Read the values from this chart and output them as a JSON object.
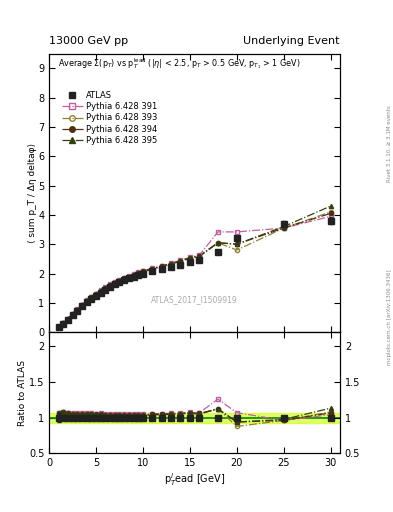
{
  "title_left": "13000 GeV pp",
  "title_right": "Underlying Event",
  "right_label": "mcplots.cern.ch [arXiv:1306.3436]",
  "right_label2": "Rivet 3.1.10, ≥ 3.1M events",
  "annotation": "ATLAS_2017_I1509919",
  "ylabel_main": "⟨ sum p_T / Δη deltaφ⟩",
  "ylabel_ratio": "Ratio to ATLAS",
  "xlabel": "p$_T^l$ead [GeV]",
  "ylim_main": [
    0,
    9.5
  ],
  "ylim_ratio": [
    0.5,
    2.2
  ],
  "xlim": [
    0.5,
    31
  ],
  "yticks_main": [
    0,
    1,
    2,
    3,
    4,
    5,
    6,
    7,
    8,
    9
  ],
  "yticks_ratio": [
    0.5,
    1.0,
    1.5,
    2.0
  ],
  "xticks": [
    0,
    5,
    10,
    15,
    20,
    25,
    30
  ],
  "atlas_x": [
    1.0,
    1.5,
    2.0,
    2.5,
    3.0,
    3.5,
    4.0,
    4.5,
    5.0,
    5.5,
    6.0,
    6.5,
    7.0,
    7.5,
    8.0,
    8.5,
    9.0,
    9.5,
    10.0,
    11.0,
    12.0,
    13.0,
    14.0,
    15.0,
    16.0,
    18.0,
    20.0,
    25.0,
    30.0
  ],
  "atlas_y": [
    0.17,
    0.28,
    0.43,
    0.58,
    0.73,
    0.88,
    1.02,
    1.13,
    1.24,
    1.35,
    1.45,
    1.55,
    1.63,
    1.7,
    1.77,
    1.83,
    1.89,
    1.95,
    2.0,
    2.07,
    2.15,
    2.22,
    2.3,
    2.38,
    2.46,
    2.72,
    3.2,
    3.7,
    3.8
  ],
  "atlas_yerr": [
    0.01,
    0.01,
    0.01,
    0.01,
    0.01,
    0.01,
    0.01,
    0.01,
    0.01,
    0.01,
    0.01,
    0.01,
    0.01,
    0.01,
    0.01,
    0.01,
    0.01,
    0.01,
    0.02,
    0.02,
    0.02,
    0.02,
    0.02,
    0.03,
    0.04,
    0.05,
    0.08,
    0.1,
    0.12
  ],
  "p391_x": [
    1.0,
    1.5,
    2.0,
    2.5,
    3.0,
    3.5,
    4.0,
    4.5,
    5.0,
    5.5,
    6.0,
    6.5,
    7.0,
    7.5,
    8.0,
    8.5,
    9.0,
    9.5,
    10.0,
    11.0,
    12.0,
    13.0,
    14.0,
    15.0,
    16.0,
    18.0,
    20.0,
    25.0,
    30.0
  ],
  "p391_y": [
    0.18,
    0.3,
    0.46,
    0.62,
    0.78,
    0.94,
    1.08,
    1.2,
    1.31,
    1.43,
    1.53,
    1.63,
    1.71,
    1.78,
    1.85,
    1.91,
    1.98,
    2.04,
    2.09,
    2.18,
    2.27,
    2.35,
    2.45,
    2.55,
    2.62,
    3.42,
    3.42,
    3.55,
    3.95
  ],
  "p393_x": [
    1.0,
    1.5,
    2.0,
    2.5,
    3.0,
    3.5,
    4.0,
    4.5,
    5.0,
    5.5,
    6.0,
    6.5,
    7.0,
    7.5,
    8.0,
    8.5,
    9.0,
    9.5,
    10.0,
    11.0,
    12.0,
    13.0,
    14.0,
    15.0,
    16.0,
    18.0,
    20.0,
    25.0,
    30.0
  ],
  "p393_y": [
    0.18,
    0.3,
    0.46,
    0.61,
    0.77,
    0.92,
    1.06,
    1.18,
    1.29,
    1.4,
    1.5,
    1.59,
    1.68,
    1.75,
    1.82,
    1.88,
    1.94,
    2.0,
    2.05,
    2.14,
    2.23,
    2.32,
    2.41,
    2.51,
    2.57,
    3.05,
    2.8,
    3.55,
    4.1
  ],
  "p394_x": [
    1.0,
    1.5,
    2.0,
    2.5,
    3.0,
    3.5,
    4.0,
    4.5,
    5.0,
    5.5,
    6.0,
    6.5,
    7.0,
    7.5,
    8.0,
    8.5,
    9.0,
    9.5,
    10.0,
    11.0,
    12.0,
    13.0,
    14.0,
    15.0,
    16.0,
    18.0,
    20.0,
    25.0,
    30.0
  ],
  "p394_y": [
    0.18,
    0.3,
    0.46,
    0.61,
    0.77,
    0.92,
    1.07,
    1.19,
    1.3,
    1.41,
    1.51,
    1.61,
    1.69,
    1.76,
    1.83,
    1.89,
    1.96,
    2.02,
    2.07,
    2.16,
    2.25,
    2.33,
    2.43,
    2.53,
    2.6,
    3.05,
    3.0,
    3.55,
    4.05
  ],
  "p395_x": [
    1.0,
    1.5,
    2.0,
    2.5,
    3.0,
    3.5,
    4.0,
    4.5,
    5.0,
    5.5,
    6.0,
    6.5,
    7.0,
    7.5,
    8.0,
    8.5,
    9.0,
    9.5,
    10.0,
    11.0,
    12.0,
    13.0,
    14.0,
    15.0,
    16.0,
    18.0,
    20.0,
    25.0,
    30.0
  ],
  "p395_y": [
    0.18,
    0.3,
    0.46,
    0.61,
    0.77,
    0.92,
    1.07,
    1.19,
    1.3,
    1.41,
    1.51,
    1.6,
    1.69,
    1.76,
    1.83,
    1.89,
    1.96,
    2.02,
    2.07,
    2.16,
    2.25,
    2.33,
    2.43,
    2.53,
    2.59,
    3.05,
    3.0,
    3.6,
    4.3
  ],
  "color_391": "#c060a0",
  "color_393": "#908030",
  "color_394": "#503010",
  "color_395": "#304010",
  "color_atlas": "#222222",
  "bg_color": "#ffffff",
  "ratio_band_color": "#ccff00",
  "ratio_band_alpha": 0.6,
  "ratio_line_color": "#008800"
}
